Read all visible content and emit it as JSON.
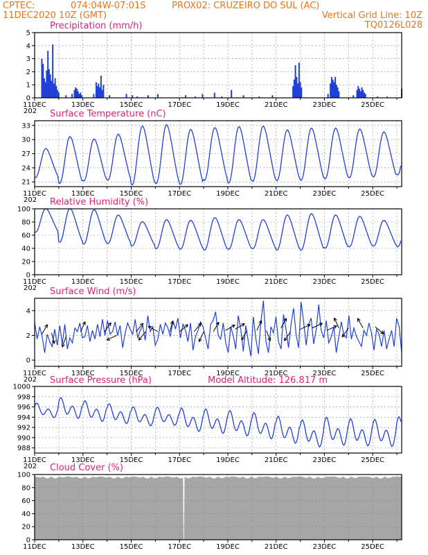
{
  "header": {
    "source": "CPTEC:",
    "coords": "074:04W-07:01S",
    "station": "PROX02: CRUZEIRO DO SUL (AC)",
    "run": "11DEC2020 10Z (GMT)",
    "grid_note": "Vertical Grid Line: 10Z",
    "code": "TQ0126L028"
  },
  "model_altitude": "Model Altitude: 126.817 m",
  "x_axis": {
    "labels": [
      "11DEC",
      "13DEC",
      "15DEC",
      "17DEC",
      "19DEC",
      "21DEC",
      "23DEC",
      "25DEC"
    ],
    "label_days": [
      0,
      2,
      4,
      6,
      8,
      10,
      12,
      14
    ],
    "range_days": [
      0,
      15.2
    ],
    "year_fragment": "202"
  },
  "colors": {
    "header": "#e8741a",
    "title": "#e0207a",
    "series": "#1f3fd6",
    "cloud": "#a6a6a6",
    "wind_arrow": "#000000"
  },
  "chart_data": [
    {
      "type": "bar",
      "title": "Precipitation (mm/h)",
      "ylim": [
        0,
        5
      ],
      "yticks": [
        0,
        1,
        2,
        3,
        4,
        5
      ],
      "events": [
        [
          0.3,
          3.0
        ],
        [
          0.35,
          2.6
        ],
        [
          0.4,
          1.5
        ],
        [
          0.45,
          1.2
        ],
        [
          0.5,
          2.1
        ],
        [
          0.55,
          3.6
        ],
        [
          0.6,
          2.2
        ],
        [
          0.65,
          1.8
        ],
        [
          0.7,
          1.3
        ],
        [
          0.75,
          4.1
        ],
        [
          0.8,
          1.1
        ],
        [
          0.85,
          1.5
        ],
        [
          0.9,
          0.9
        ],
        [
          0.95,
          0.6
        ],
        [
          1.0,
          0.4
        ],
        [
          1.3,
          0.2
        ],
        [
          1.55,
          0.3
        ],
        [
          1.65,
          0.6
        ],
        [
          1.7,
          0.8
        ],
        [
          1.75,
          0.7
        ],
        [
          1.8,
          0.5
        ],
        [
          1.85,
          0.3
        ],
        [
          1.9,
          0.4
        ],
        [
          1.95,
          0.2
        ],
        [
          2.45,
          0.3
        ],
        [
          2.55,
          1.2
        ],
        [
          2.6,
          0.9
        ],
        [
          2.65,
          1.1
        ],
        [
          2.7,
          0.8
        ],
        [
          2.75,
          1.7
        ],
        [
          2.8,
          0.6
        ],
        [
          2.85,
          1.0
        ],
        [
          3.1,
          0.2
        ],
        [
          3.8,
          0.3
        ],
        [
          4.05,
          0.2
        ],
        [
          4.25,
          0.1
        ],
        [
          4.7,
          0.2
        ],
        [
          5.1,
          0.3
        ],
        [
          6.25,
          0.2
        ],
        [
          6.65,
          0.1
        ],
        [
          6.95,
          0.3
        ],
        [
          7.45,
          0.4
        ],
        [
          7.75,
          0.1
        ],
        [
          8.15,
          0.6
        ],
        [
          8.65,
          0.2
        ],
        [
          9.3,
          0.1
        ],
        [
          9.85,
          0.2
        ],
        [
          10.7,
          0.9
        ],
        [
          10.75,
          1.4
        ],
        [
          10.8,
          2.5
        ],
        [
          10.85,
          1.6
        ],
        [
          10.9,
          1.1
        ],
        [
          10.95,
          2.7
        ],
        [
          11.0,
          1.2
        ],
        [
          11.05,
          0.8
        ],
        [
          12.15,
          0.3
        ],
        [
          12.25,
          1.1
        ],
        [
          12.3,
          1.6
        ],
        [
          12.35,
          1.4
        ],
        [
          12.4,
          1.2
        ],
        [
          12.45,
          1.6
        ],
        [
          12.5,
          1.0
        ],
        [
          12.55,
          0.8
        ],
        [
          12.6,
          0.5
        ],
        [
          13.2,
          0.2
        ],
        [
          13.35,
          0.6
        ],
        [
          13.4,
          0.9
        ],
        [
          13.45,
          0.7
        ],
        [
          13.5,
          0.5
        ],
        [
          13.55,
          0.8
        ],
        [
          13.6,
          0.6
        ],
        [
          13.65,
          0.4
        ],
        [
          13.7,
          0.3
        ],
        [
          14.2,
          0.1
        ],
        [
          14.6,
          0.1
        ],
        [
          15.2,
          0.7
        ]
      ]
    },
    {
      "type": "line",
      "title": "Surface Temperature (nC)",
      "ylim": [
        20,
        34
      ],
      "yticks": [
        21,
        24,
        27,
        30,
        33
      ],
      "diurnal": {
        "phase_day": 0.25,
        "min": [
          22,
          20.8,
          21.3,
          21.5,
          20.5,
          20.8,
          20.6,
          21.5,
          20.9,
          21.3,
          21.4,
          21.5,
          21.8,
          22,
          22.2,
          22.6
        ],
        "max": [
          28,
          30.5,
          30,
          31,
          32.7,
          33,
          32,
          32.4,
          32.6,
          32.7,
          31.9,
          32.3,
          32.3,
          32.1,
          31.5,
          32
        ]
      }
    },
    {
      "type": "line",
      "title": "Relative Humidity (%)",
      "ylim": [
        0,
        100
      ],
      "yticks": [
        0,
        20,
        40,
        60,
        80,
        100
      ],
      "diurnal": {
        "phase_day": 0.25,
        "min": [
          65,
          50,
          47,
          48,
          44,
          40,
          39,
          38,
          39,
          40,
          38,
          38,
          41,
          43,
          44,
          43
        ],
        "max": [
          100,
          100,
          98,
          90,
          80,
          83,
          82,
          86,
          83,
          83,
          90,
          92,
          90,
          88,
          82,
          85
        ]
      }
    },
    {
      "type": "line",
      "title": "Surface Wind (m/s)",
      "ylim": [
        -0.5,
        5
      ],
      "yticks": [
        0,
        2,
        4
      ],
      "series_values": [
        3.1,
        1.7,
        2.7,
        1.9,
        0.6,
        2.1,
        1.5,
        1.1,
        2.5,
        1.2,
        2.8,
        1.3,
        2.9,
        0.9,
        1.8,
        1.4,
        2.6,
        2.3,
        3.0,
        1.8,
        1.9,
        2.8,
        1.5,
        2.4,
        1.7,
        2.9,
        1.9,
        3.3,
        2.0,
        3.2,
        2.1,
        2.3,
        3.1,
        2.0,
        2.8,
        1.0,
        2.2,
        3.0,
        2.5,
        2.1,
        3.3,
        1.8,
        2.4,
        2.8,
        1.6,
        3.6,
        2.3,
        2.7,
        1.2,
        1.7,
        2.9,
        2.1,
        3.0,
        2.6,
        1.9,
        3.2,
        2.5,
        3.4,
        1.8,
        2.9,
        2.4,
        1.5,
        3.0,
        0.8,
        1.9,
        2.4,
        3.1,
        2.7,
        1.8,
        0.9,
        2.9,
        3.2,
        3.9,
        2.0,
        1.7,
        3.0,
        1.4,
        0.6,
        2.7,
        2.0,
        0.9,
        3.6,
        2.5,
        0.7,
        2.8,
        1.5,
        0.3,
        3.5,
        1.7,
        0.5,
        3.1,
        4.8,
        1.5,
        0.6,
        2.7,
        2.2,
        3.5,
        1.5,
        0.9,
        3.7,
        2.5,
        1.0,
        2.9,
        4.2,
        2.1,
        1.0,
        4.7,
        3.1,
        1.2,
        2.9,
        3.4,
        1.3,
        2.5,
        4.5,
        2.4,
        1.8,
        3.2,
        1.4,
        1.9,
        2.7,
        0.6,
        1.9,
        3.1,
        2.0,
        1.8,
        3.6,
        1.7,
        2.6,
        1.9,
        1.5,
        1.1,
        2.4,
        2.0,
        3.0,
        2.2,
        0.8,
        2.5,
        2.1,
        1.1,
        2.4,
        0.9,
        1.7,
        2.4,
        1.1,
        3.4,
        2.7,
        0.6
      ],
      "arrows": [
        [
          0.3,
          2.1,
          30
        ],
        [
          0.7,
          2.2,
          165
        ],
        [
          1.3,
          1.9,
          200
        ],
        [
          1.9,
          2.3,
          25
        ],
        [
          2.9,
          2.3,
          35
        ],
        [
          3.4,
          2.0,
          245
        ],
        [
          4.2,
          2.3,
          40
        ],
        [
          4.6,
          2.3,
          220
        ],
        [
          5.1,
          2.3,
          300
        ],
        [
          5.6,
          2.3,
          15
        ],
        [
          6.0,
          2.3,
          50
        ],
        [
          6.6,
          2.3,
          40
        ],
        [
          7.0,
          2.3,
          205
        ],
        [
          7.4,
          2.3,
          30
        ],
        [
          7.9,
          2.4,
          60
        ],
        [
          8.3,
          2.5,
          60
        ],
        [
          8.8,
          2.4,
          210
        ],
        [
          9.2,
          2.4,
          25
        ],
        [
          9.6,
          2.4,
          160
        ],
        [
          10.2,
          2.6,
          30
        ],
        [
          10.6,
          2.3,
          215
        ],
        [
          11.0,
          2.5,
          65
        ],
        [
          11.5,
          2.6,
          65
        ],
        [
          12.1,
          2.4,
          65
        ],
        [
          12.6,
          2.6,
          335
        ],
        [
          13.0,
          2.6,
          215
        ],
        [
          13.6,
          2.6,
          330
        ],
        [
          14.1,
          2.7,
          130
        ]
      ]
    },
    {
      "type": "line",
      "title": "Surface Pressure (hPa)",
      "ylim": [
        987,
        1000
      ],
      "yticks": [
        988,
        990,
        992,
        994,
        996,
        998,
        1000
      ],
      "semidiurnal": {
        "level": [
          995.2,
          995.6,
          995.0,
          994.5,
          994.0,
          994.0,
          993.3,
          993.0,
          992.6,
          992.1,
          991.3,
          990.6,
          991.0,
          990.8,
          990.7,
          991.2
        ],
        "amp": [
          1.6,
          2.3,
          2.3,
          2.2,
          2.1,
          2.0,
          2.6,
          2.7,
          2.8,
          2.9,
          3.0,
          3.0,
          3.1,
          3.0,
          3.0,
          3.0
        ]
      }
    },
    {
      "type": "area",
      "title": "Cloud Cover (%)",
      "ylim": [
        0,
        100
      ],
      "yticks": [
        0,
        20,
        40,
        60,
        80,
        100
      ],
      "baseline_percent": 97,
      "gap_day": 6.17
    }
  ]
}
